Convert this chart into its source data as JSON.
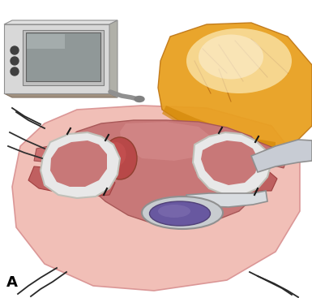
{
  "figure_label": "A",
  "bg_color": "#ffffff",
  "fig_width": 3.85,
  "fig_height": 3.67,
  "dpi": 100,
  "monitor": {
    "body_color": "#d8d8d8",
    "body_shadow": "#a09080",
    "screen_color": "#909898",
    "screen_highlight": "#b8c0c0",
    "button_color": "#404040",
    "cable_color": "#909090"
  },
  "tissue": {
    "peri_color": "#f0b8b0",
    "peri_edge": "#d89090",
    "heart_color": "#d07878",
    "heart_dark": "#b86060",
    "pv_red": "#c05050",
    "pv_dark": "#a03838"
  },
  "lung": {
    "base": "#d4880a",
    "mid": "#e8a020",
    "light": "#f0c050",
    "glow": "#fff8d0"
  },
  "snare": {
    "outer": "#e8e8e8",
    "inner": "#c8c8c0",
    "suture": "#181818"
  },
  "ablator": {
    "body": "#c8ccd4",
    "edge": "#909090",
    "tip": "#d8dce0"
  },
  "lesion": {
    "outer_ring": "#c8ccd0",
    "purple": "#6858a0",
    "purple_hi": "#8878b8"
  }
}
